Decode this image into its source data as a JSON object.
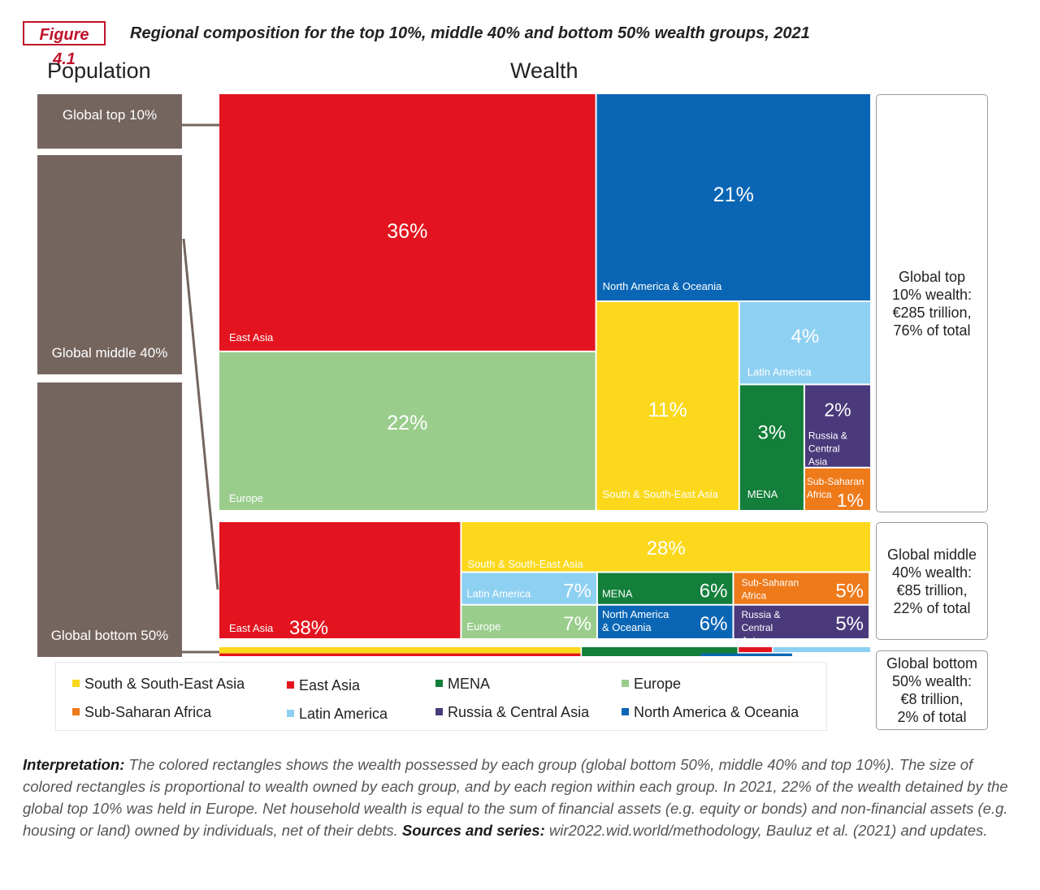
{
  "figure": {
    "label": "Figure 4.1",
    "title": "Regional composition for the top 10%, middle 40% and bottom 50% wealth groups, 2021"
  },
  "headings": {
    "population": "Population",
    "wealth": "Wealth"
  },
  "population": {
    "top": "Global top 10%",
    "middle": "Global middle 40%",
    "bottom": "Global bottom 50%"
  },
  "summaries": {
    "top": [
      "Global top",
      "10% wealth:",
      "€285 trillion,",
      "76% of total"
    ],
    "middle": [
      "Global middle",
      "40% wealth:",
      "€85 trillion,",
      "22% of total"
    ],
    "bottom": [
      "Global bottom",
      "50% wealth:",
      "€8 trillion,",
      "2% of total"
    ]
  },
  "colors": {
    "south_se_asia": "#fbd81c",
    "east_asia": "#e3141f",
    "mena": "#137f3a",
    "europe": "#9acd8c",
    "ssa": "#ee7a1a",
    "latin_america": "#8ed0f2",
    "russia_ca": "#4a3a7c",
    "na_oceania": "#0a66b5",
    "population": "#75655f"
  },
  "legend": [
    {
      "key": "south_se_asia",
      "label": "South & South-East Asia"
    },
    {
      "key": "east_asia",
      "label": "East Asia"
    },
    {
      "key": "mena",
      "label": "MENA"
    },
    {
      "key": "europe",
      "label": "Europe"
    },
    {
      "key": "ssa",
      "label": "Sub-Saharan Africa"
    },
    {
      "key": "latin_america",
      "label": "Latin America"
    },
    {
      "key": "russia_ca",
      "label": "Russia & Central Asia"
    },
    {
      "key": "na_oceania",
      "label": "North America & Oceania"
    }
  ],
  "chart_data": {
    "type": "treemap",
    "title": "Regional composition for the top 10%, middle 40% and bottom 50% wealth groups, 2021",
    "groups": [
      {
        "name": "Global top 10%",
        "total_eur_trillion": 285,
        "share_of_total_pct": 76,
        "regions": [
          {
            "region": "East Asia",
            "key": "east_asia",
            "pct": 36,
            "value_label": "36%",
            "region_label": "East Asia"
          },
          {
            "region": "North America & Oceania",
            "key": "na_oceania",
            "pct": 21,
            "value_label": "21%",
            "region_label": "North America & Oceania"
          },
          {
            "region": "Europe",
            "key": "europe",
            "pct": 22,
            "value_label": "22%",
            "region_label": "Europe"
          },
          {
            "region": "South & South-East Asia",
            "key": "south_se_asia",
            "pct": 11,
            "value_label": "11%",
            "region_label": "South & South-East Asia"
          },
          {
            "region": "Latin America",
            "key": "latin_america",
            "pct": 4,
            "value_label": "4%",
            "region_label": "Latin America"
          },
          {
            "region": "MENA",
            "key": "mena",
            "pct": 3,
            "value_label": "3%",
            "region_label": "MENA"
          },
          {
            "region": "Russia & Central Asia",
            "key": "russia_ca",
            "pct": 2,
            "value_label": "2%",
            "region_label": "Russia & Central Asia"
          },
          {
            "region": "Sub-Saharan Africa",
            "key": "ssa",
            "pct": 1,
            "value_label": "1%",
            "region_label": "Sub-Saharan Africa"
          }
        ]
      },
      {
        "name": "Global middle 40%",
        "total_eur_trillion": 85,
        "share_of_total_pct": 22,
        "regions": [
          {
            "region": "East Asia",
            "key": "east_asia",
            "pct": 38,
            "value_label": "38%",
            "region_label": "East Asia"
          },
          {
            "region": "South & South-East Asia",
            "key": "south_se_asia",
            "pct": 28,
            "value_label": "28%",
            "region_label": "South & South-East Asia"
          },
          {
            "region": "Latin America",
            "key": "latin_america",
            "pct": 7,
            "value_label": "7%",
            "region_label": "Latin America"
          },
          {
            "region": "MENA",
            "key": "mena",
            "pct": 6,
            "value_label": "6%",
            "region_label": "MENA"
          },
          {
            "region": "Sub-Saharan Africa",
            "key": "ssa",
            "pct": 5,
            "value_label": "5%",
            "region_label": "Sub-Saharan Africa"
          },
          {
            "region": "Europe",
            "key": "europe",
            "pct": 7,
            "value_label": "7%",
            "region_label": "Europe"
          },
          {
            "region": "North America & Oceania",
            "key": "na_oceania",
            "pct": 6,
            "value_label": "6%",
            "region_label": "North America & Oceania"
          },
          {
            "region": "Russia & Central Asia",
            "key": "russia_ca",
            "pct": 5,
            "value_label": "5%",
            "region_label": "Russia & Central Asia"
          }
        ]
      },
      {
        "name": "Global bottom 50%",
        "total_eur_trillion": 8,
        "share_of_total_pct": 2,
        "regions": [
          {
            "region": "South & South-East Asia",
            "key": "south_se_asia"
          },
          {
            "region": "MENA",
            "key": "mena"
          },
          {
            "region": "East Asia",
            "key": "east_asia"
          },
          {
            "region": "North America & Oceania",
            "key": "na_oceania"
          },
          {
            "region": "Latin America",
            "key": "latin_america"
          }
        ]
      }
    ]
  },
  "note": {
    "interp_label": "Interpretation:",
    "interp_text": " The colored rectangles shows the wealth possessed by each group (global bottom 50%, middle 40% and top 10%). The size of colored rectangles is proportional to wealth owned by each group, and by each region within each group. In 2021, 22% of the wealth detained by the global top 10% was held in Europe. Net household wealth is equal to the sum of financial assets (e.g. equity or bonds) and non-financial assets (e.g. housing or land) owned by individuals, net of their debts. ",
    "sources_label": "Sources and series:",
    "sources_text": " wir2022.wid.world/methodology, Bauluz et al. (2021) and updates."
  }
}
